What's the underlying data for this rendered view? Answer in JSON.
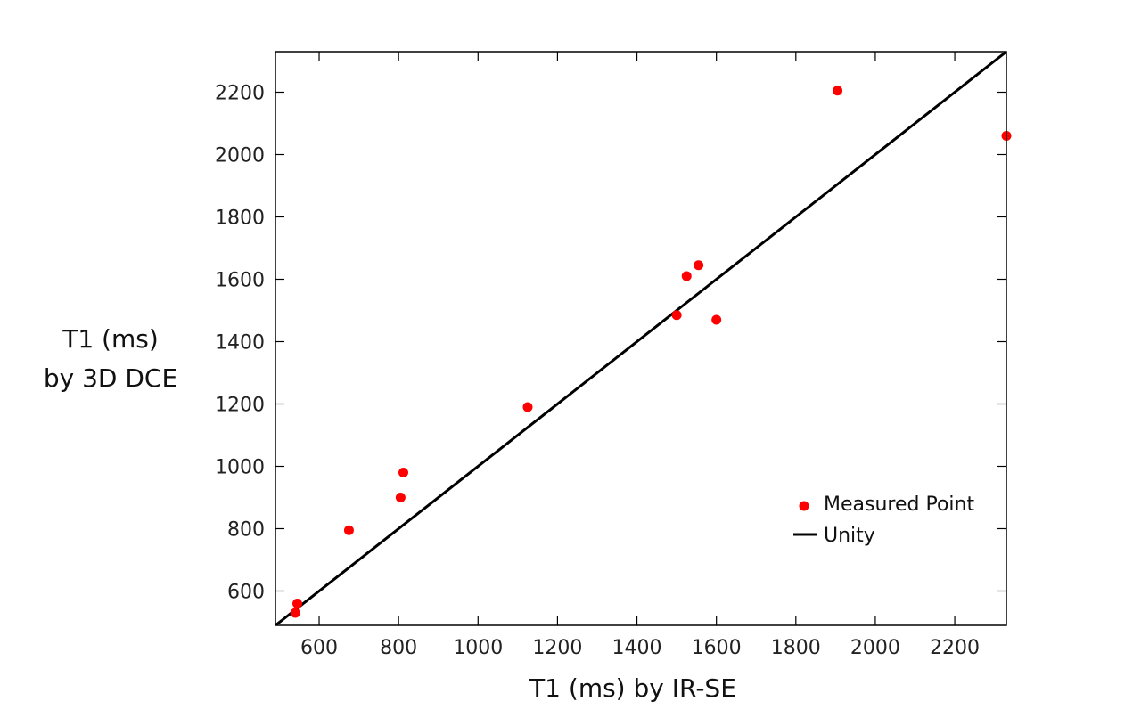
{
  "chart_data": {
    "type": "scatter",
    "title": "",
    "xlabel": "T1 (ms) by IR-SE",
    "ylabel_lines": [
      "T1 (ms)",
      "by 3D DCE"
    ],
    "xlim": [
      490,
      2330
    ],
    "ylim": [
      490,
      2330
    ],
    "xticks": [
      600,
      800,
      1000,
      1200,
      1400,
      1600,
      1800,
      2000,
      2200
    ],
    "yticks": [
      600,
      800,
      1000,
      1200,
      1400,
      1600,
      1800,
      2000,
      2200
    ],
    "grid": false,
    "legend_position": "bottom-right",
    "series": [
      {
        "name": "Measured Point",
        "kind": "scatter",
        "color": "#ff0000",
        "points": [
          {
            "x": 540,
            "y": 530
          },
          {
            "x": 545,
            "y": 560
          },
          {
            "x": 675,
            "y": 795
          },
          {
            "x": 805,
            "y": 900
          },
          {
            "x": 812,
            "y": 980
          },
          {
            "x": 1125,
            "y": 1190
          },
          {
            "x": 1500,
            "y": 1485
          },
          {
            "x": 1525,
            "y": 1610
          },
          {
            "x": 1555,
            "y": 1645
          },
          {
            "x": 1600,
            "y": 1470
          },
          {
            "x": 1905,
            "y": 2205
          },
          {
            "x": 2330,
            "y": 2060
          }
        ]
      },
      {
        "name": "Unity",
        "kind": "line",
        "color": "#000000",
        "points": [
          {
            "x": 490,
            "y": 490
          },
          {
            "x": 2330,
            "y": 2330
          }
        ]
      }
    ]
  }
}
